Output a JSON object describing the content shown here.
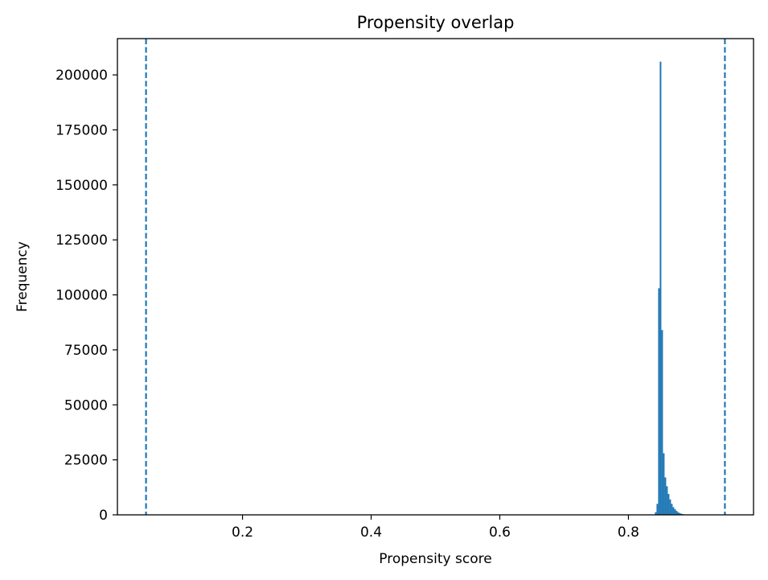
{
  "chart_data": {
    "type": "bar",
    "title": "Propensity overlap",
    "xlabel": "Propensity score",
    "ylabel": "Frequency",
    "xlim": [
      0.0055,
      0.9945
    ],
    "ylim": [
      0,
      216500
    ],
    "xticks": [
      0.2,
      0.4,
      0.6,
      0.8
    ],
    "xtick_labels": [
      "0.2",
      "0.4",
      "0.6",
      "0.8"
    ],
    "yticks": [
      0,
      25000,
      50000,
      75000,
      100000,
      125000,
      150000,
      175000,
      200000
    ],
    "ytick_labels": [
      "0",
      "25000",
      "50000",
      "75000",
      "100000",
      "125000",
      "150000",
      "175000",
      "200000"
    ],
    "grid": false,
    "bar_color": "#1f77b4",
    "reference_lines": [
      {
        "x": 0.05,
        "style": "dashed",
        "color": "#1f77b4"
      },
      {
        "x": 0.95,
        "style": "dashed",
        "color": "#1f77b4"
      }
    ],
    "bins": [
      {
        "x0": 0.8412,
        "x1": 0.8437,
        "value": 1200
      },
      {
        "x0": 0.8437,
        "x1": 0.8462,
        "value": 5000
      },
      {
        "x0": 0.8462,
        "x1": 0.8487,
        "value": 103000
      },
      {
        "x0": 0.8487,
        "x1": 0.8512,
        "value": 206000
      },
      {
        "x0": 0.8512,
        "x1": 0.8537,
        "value": 84000
      },
      {
        "x0": 0.8537,
        "x1": 0.8562,
        "value": 28000
      },
      {
        "x0": 0.8562,
        "x1": 0.8587,
        "value": 17000
      },
      {
        "x0": 0.8587,
        "x1": 0.8612,
        "value": 13000
      },
      {
        "x0": 0.8612,
        "x1": 0.8637,
        "value": 9500
      },
      {
        "x0": 0.8637,
        "x1": 0.8662,
        "value": 7000
      },
      {
        "x0": 0.8662,
        "x1": 0.8687,
        "value": 5000
      },
      {
        "x0": 0.8687,
        "x1": 0.8712,
        "value": 3500
      },
      {
        "x0": 0.8712,
        "x1": 0.8737,
        "value": 2600
      },
      {
        "x0": 0.8737,
        "x1": 0.8762,
        "value": 1800
      },
      {
        "x0": 0.8762,
        "x1": 0.8787,
        "value": 1200
      },
      {
        "x0": 0.8787,
        "x1": 0.8812,
        "value": 800
      },
      {
        "x0": 0.8812,
        "x1": 0.8837,
        "value": 500
      },
      {
        "x0": 0.8837,
        "x1": 0.8862,
        "value": 300
      },
      {
        "x0": 0.8862,
        "x1": 0.8887,
        "value": 180
      },
      {
        "x0": 0.8887,
        "x1": 0.8912,
        "value": 100
      }
    ]
  }
}
